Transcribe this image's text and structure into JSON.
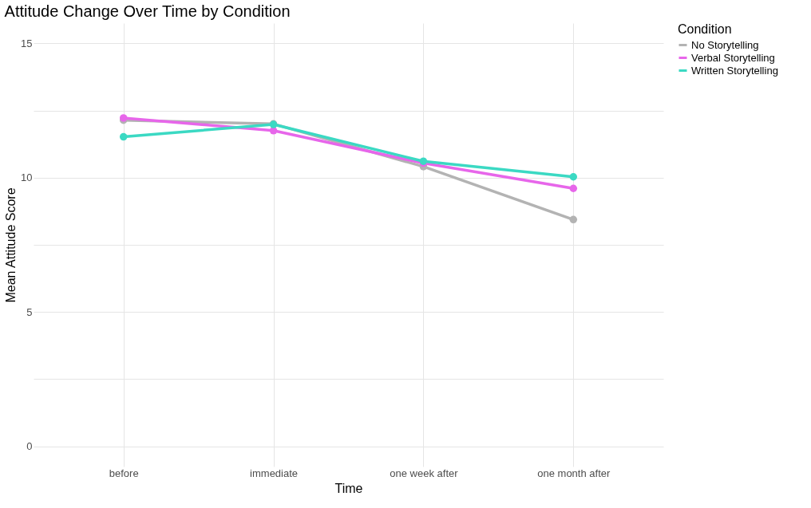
{
  "chart_data": {
    "type": "line",
    "title": "Attitude Change Over Time by Condition",
    "xlabel": "Time",
    "ylabel": "Mean Attitude Score",
    "legend_title": "Condition",
    "categories": [
      "before",
      "immediate",
      "one week after",
      "one month after"
    ],
    "series": [
      {
        "name": "No Storytelling",
        "color": "#b3b3b3",
        "values": [
          12.14,
          12.0,
          10.41,
          8.44
        ]
      },
      {
        "name": "Verbal Storytelling",
        "color": "#e766ea",
        "values": [
          12.22,
          11.75,
          10.54,
          9.6
        ]
      },
      {
        "name": "Written Storytelling",
        "color": "#3bd9c3",
        "values": [
          11.52,
          11.98,
          10.61,
          10.03
        ]
      }
    ],
    "ylim": [
      -0.75,
      15.75
    ],
    "yticks": [
      0,
      {
        "value": 2.5,
        "label": null
      },
      5,
      {
        "value": 7.5,
        "label": null
      },
      10,
      {
        "value": 12.5,
        "label": null
      },
      15
    ],
    "grid": true,
    "legend": "right",
    "marker": "circle",
    "line_style": "solid"
  }
}
